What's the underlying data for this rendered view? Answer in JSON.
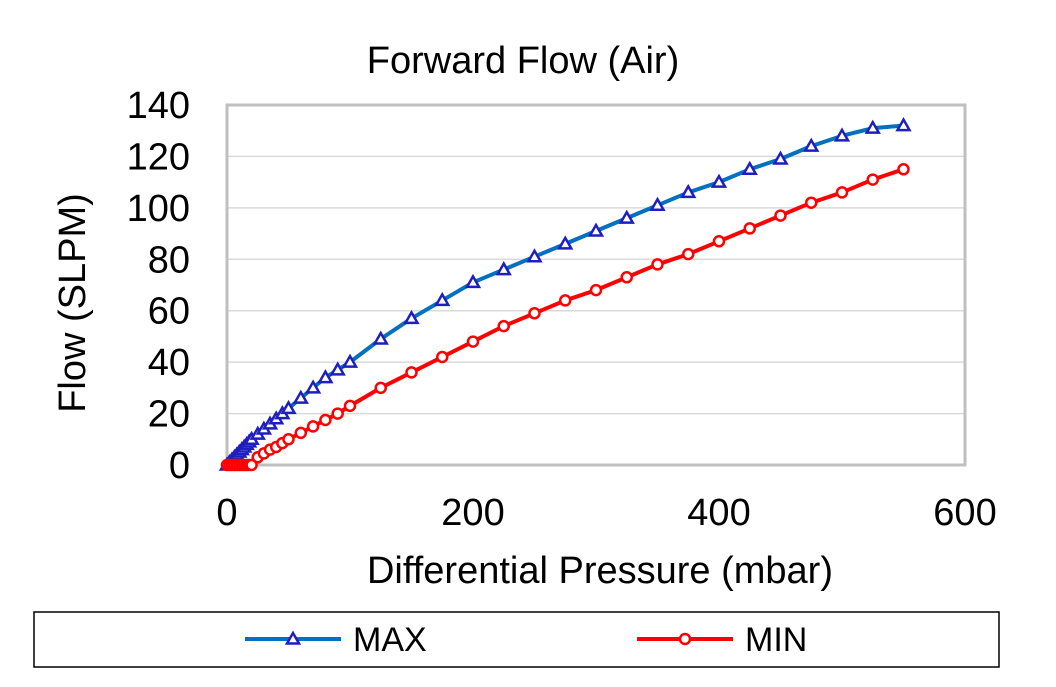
{
  "chart_data": {
    "type": "line",
    "title": "Forward Flow (Air)",
    "xlabel": "Differential Pressure (mbar)",
    "ylabel": "Flow (SLPM)",
    "xlim": [
      0,
      600
    ],
    "ylim": [
      0,
      140
    ],
    "xticks": [
      0,
      200,
      400,
      600
    ],
    "yticks": [
      0,
      20,
      40,
      60,
      80,
      100,
      120,
      140
    ],
    "grid": "horizontal",
    "legend": "bottom",
    "series": [
      {
        "name": "MAX",
        "color": "#0070c0",
        "marker": "triangle",
        "x": [
          0,
          2,
          4,
          6,
          8,
          10,
          12,
          14,
          16,
          18,
          20,
          25,
          30,
          35,
          40,
          45,
          50,
          60,
          70,
          80,
          90,
          100,
          125,
          150,
          175,
          200,
          225,
          250,
          275,
          300,
          325,
          350,
          375,
          400,
          425,
          450,
          475,
          500,
          525,
          550
        ],
        "y": [
          0,
          1,
          2,
          3,
          4,
          5,
          6,
          7,
          8,
          9,
          10,
          12,
          14,
          16,
          18,
          20,
          22,
          26,
          30,
          34,
          37,
          40,
          49,
          57,
          64,
          71,
          76,
          81,
          86,
          91,
          96,
          101,
          106,
          110,
          115,
          119,
          124,
          128,
          131,
          132
        ]
      },
      {
        "name": "MIN",
        "color": "#ff0000",
        "marker": "circle",
        "x": [
          0,
          2,
          4,
          6,
          8,
          10,
          12,
          14,
          16,
          18,
          20,
          25,
          30,
          35,
          40,
          45,
          50,
          60,
          70,
          80,
          90,
          100,
          125,
          150,
          175,
          200,
          225,
          250,
          275,
          300,
          325,
          350,
          375,
          400,
          425,
          450,
          475,
          500,
          525,
          550
        ],
        "y": [
          0,
          0,
          0,
          0,
          0,
          0,
          0,
          0,
          0,
          0,
          0,
          3,
          4.5,
          6,
          7,
          8.5,
          10,
          12.5,
          15,
          17.5,
          20,
          23,
          30,
          36,
          42,
          48,
          54,
          59,
          64,
          68,
          73,
          78,
          82,
          87,
          92,
          97,
          102,
          106,
          111,
          115
        ]
      }
    ]
  }
}
